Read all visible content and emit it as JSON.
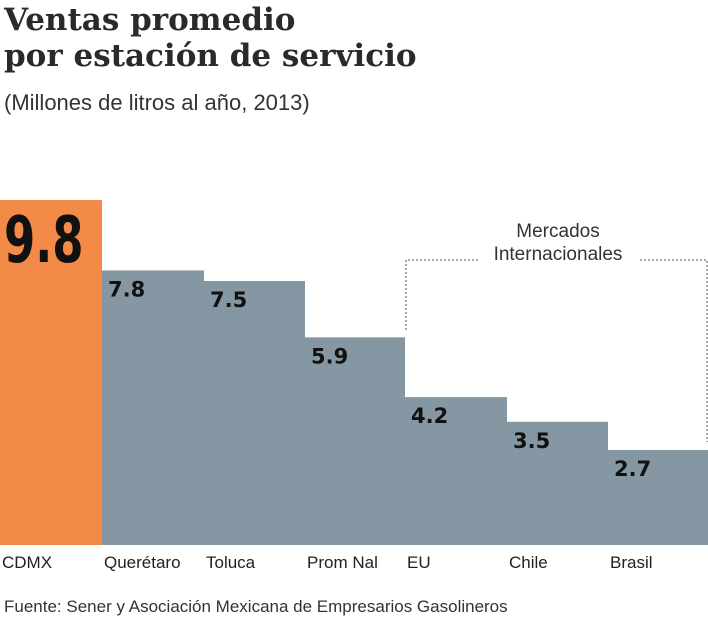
{
  "chart_data": {
    "type": "bar",
    "title": "Ventas promedio por estación de servicio",
    "title_lines": [
      "Ventas promedio",
      "por estación de servicio"
    ],
    "subtitle": "(Millones de litros al año, 2013)",
    "categories": [
      "CDMX",
      "Querétaro",
      "Toluca",
      "Prom Nal",
      "EU",
      "Chile",
      "Brasil"
    ],
    "values": [
      9.8,
      7.8,
      7.5,
      5.9,
      4.2,
      3.5,
      2.7
    ],
    "data_labels": [
      "9.8",
      "7.8",
      "7.5",
      "5.9",
      "4.2",
      "3.5",
      "2.7"
    ],
    "highlight_color": "#f48a47",
    "bar_color": "#8497a2",
    "grid": false,
    "group_annotation": {
      "label_lines": [
        "Mercados",
        "Internacionales"
      ],
      "categories": [
        "EU",
        "Chile",
        "Brasil"
      ]
    },
    "source": "Fuente: Sener y Asociación Mexicana de Empresarios Gasolineros"
  }
}
